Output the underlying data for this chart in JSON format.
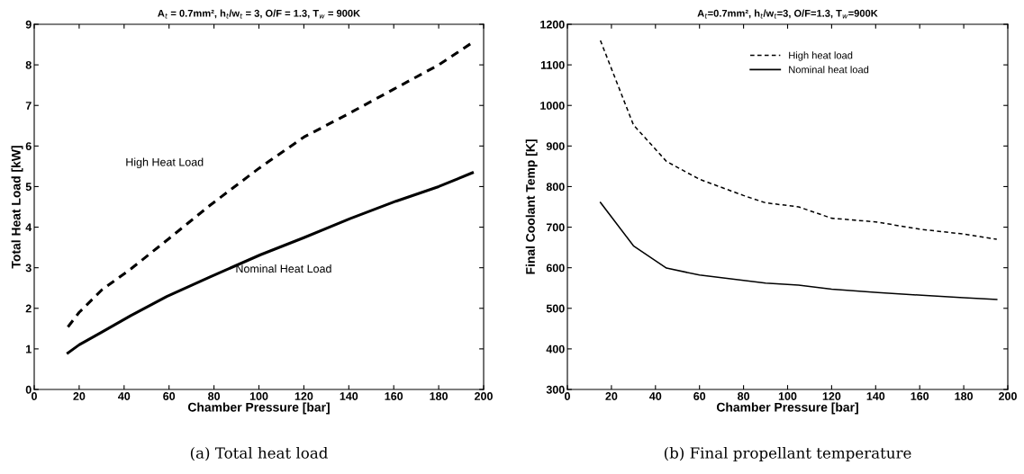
{
  "chart_data": [
    {
      "type": "line",
      "title": "A$_{t}$ = 0.7mm², h$_{t}$/w$_{t}$ = 3, O/F = 1.3, T$_{w}$ = 900K",
      "xlabel": "Chamber Pressure [bar]",
      "ylabel": "Total Heat Load [kW]",
      "xlim": [
        0,
        200
      ],
      "xticks": [
        0,
        20,
        40,
        60,
        80,
        100,
        120,
        140,
        160,
        180,
        200
      ],
      "ylim": [
        0,
        9
      ],
      "yticks": [
        0,
        1,
        2,
        3,
        4,
        5,
        6,
        7,
        8,
        9
      ],
      "grid": false,
      "legend": false,
      "series": [
        {
          "color": "#000000",
          "line_style": "dashed",
          "x": [
            15,
            20,
            30,
            43,
            60,
            78.5,
            100,
            120,
            140,
            160,
            180,
            195
          ],
          "values": [
            1.54,
            1.9,
            2.45,
            2.97,
            3.72,
            4.55,
            5.45,
            6.22,
            6.8,
            7.4,
            8.0,
            8.55
          ]
        },
        {
          "color": "#000000",
          "line_style": "solid",
          "x": [
            15,
            20,
            30,
            43,
            59,
            78.5,
            100.7,
            120,
            140.5,
            161,
            180,
            195
          ],
          "values": [
            0.9,
            1.1,
            1.41,
            1.82,
            2.29,
            2.78,
            3.32,
            3.74,
            4.21,
            4.64,
            5.0,
            5.34
          ]
        }
      ],
      "annotations": [
        "High Heat Load",
        "Nominal Heat Load",
        "(a) Total heat load"
      ]
    },
    {
      "type": "line",
      "title": "A$_{t}$=0.7mm², h$_{t}$/w$_{t}$=3, O/F=1.3, T$_{w}$=900K",
      "xlabel": "Chamber Pressure [bar]",
      "ylabel": "Final Coolant Temp [K]",
      "xlim": [
        0,
        200
      ],
      "xticks": [
        0,
        20,
        40,
        60,
        80,
        100,
        120,
        140,
        160,
        180,
        200
      ],
      "ylim": [
        300,
        1200
      ],
      "yticks": [
        300,
        400,
        500,
        600,
        700,
        800,
        900,
        1000,
        1100,
        1200
      ],
      "grid": false,
      "legend": "top",
      "series": [
        {
          "name": "High heat load",
          "color": "#000000",
          "line_style": "dashed",
          "x": [
            15,
            30,
            45,
            60,
            80,
            90,
            105,
            120,
            140,
            160,
            180,
            195
          ],
          "values": [
            1160,
            952,
            862,
            818,
            778,
            760,
            750,
            722,
            713,
            695,
            683,
            670
          ]
        },
        {
          "name": "Nominal heat load",
          "color": "#000000",
          "line_style": "solid",
          "x": [
            15,
            30,
            45,
            60,
            80,
            90,
            105,
            120,
            141,
            161,
            180,
            195
          ],
          "values": [
            761,
            654,
            599,
            582,
            569,
            562,
            557,
            547,
            539,
            532,
            526,
            522
          ]
        }
      ],
      "annotations": [
        "(b) Final propellant temperature"
      ]
    }
  ]
}
